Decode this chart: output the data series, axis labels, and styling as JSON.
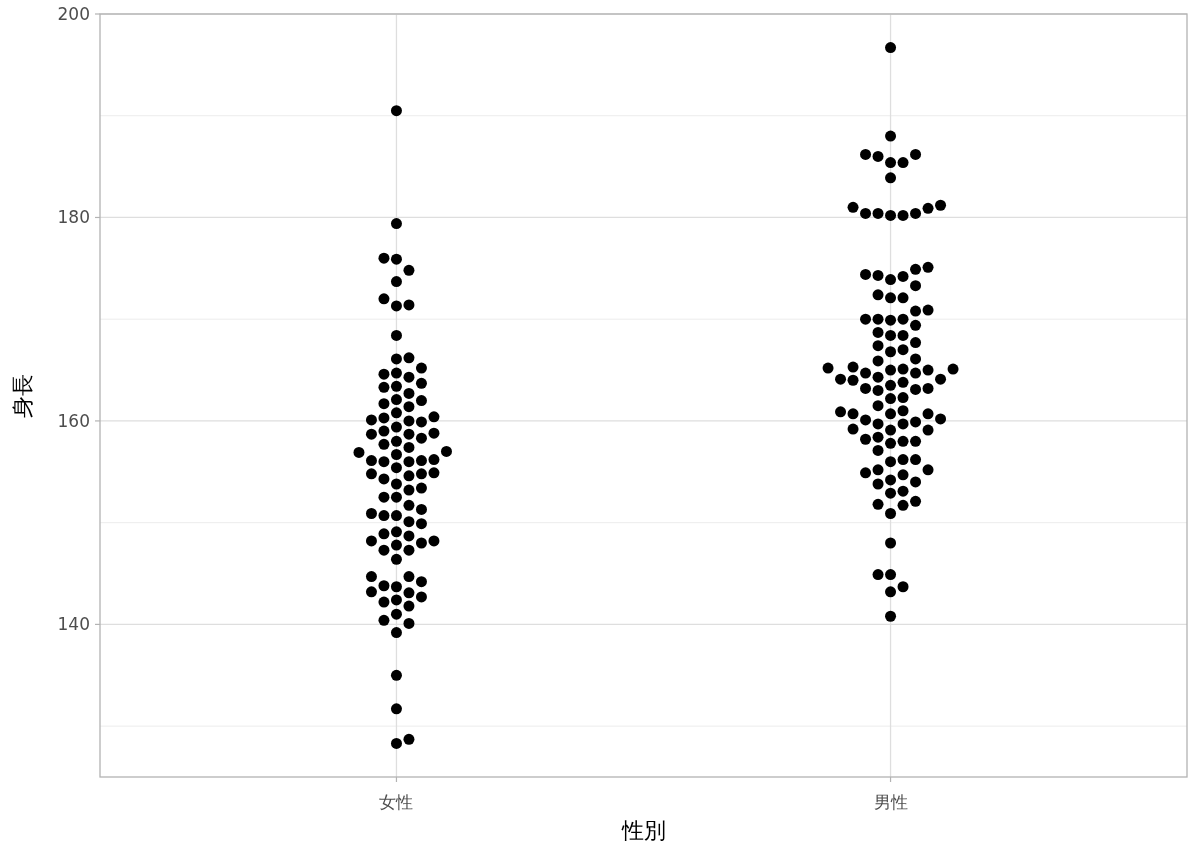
{
  "chart_data": {
    "type": "scatter",
    "xlabel": "性別",
    "ylabel": "身長",
    "marker": "circle",
    "grid": true,
    "categories": [
      "女性",
      "男性"
    ],
    "ylim": [
      125,
      200
    ],
    "yticks": [
      {
        "value": 130,
        "label": null
      },
      140,
      {
        "value": 150,
        "label": null
      },
      160,
      {
        "value": 170,
        "label": null
      },
      180,
      {
        "value": 190,
        "label": null
      },
      200
    ],
    "series": [
      {
        "color": "#000000",
        "x": [
          "女性",
          "女性",
          "女性",
          "女性",
          "女性",
          "女性",
          "女性",
          "女性",
          "女性",
          "女性",
          "女性",
          "女性",
          "女性",
          "女性",
          "女性",
          "女性",
          "女性",
          "女性",
          "女性",
          "女性",
          "女性",
          "女性",
          "女性",
          "女性",
          "女性",
          "女性",
          "女性",
          "女性",
          "女性",
          "女性",
          "女性",
          "女性",
          "女性",
          "女性",
          "女性",
          "女性",
          "女性",
          "女性",
          "女性",
          "女性",
          "女性",
          "女性",
          "女性",
          "女性",
          "女性",
          "女性",
          "女性",
          "女性",
          "女性",
          "女性",
          "女性",
          "女性",
          "女性",
          "女性",
          "女性",
          "女性",
          "女性",
          "女性",
          "女性",
          "女性",
          "女性",
          "女性",
          "女性",
          "女性",
          "女性",
          "女性",
          "女性",
          "女性",
          "女性",
          "女性",
          "女性",
          "女性",
          "女性",
          "女性",
          "女性",
          "女性",
          "女性",
          "女性",
          "女性",
          "女性",
          "女性",
          "女性",
          "女性",
          "女性",
          "女性",
          "女性",
          "女性",
          "女性",
          "女性",
          "女性",
          "女性",
          "女性",
          "女性",
          "女性"
        ],
        "values": [
          150.9,
          135.0,
          166.1,
          153.4,
          158.8,
          150.7,
          151.3,
          161.7,
          140.1,
          166.2,
          144.7,
          158.7,
          154.8,
          152.5,
          173.7,
          158.0,
          144.7,
          156.1,
          161.4,
          156.7,
          165.2,
          157.4,
          142.7,
          143.7,
          158.3,
          158.7,
          143.2,
          155.4,
          164.6,
          160.1,
          160.0,
          156.0,
          163.4,
          159.0,
          148.7,
          128.3,
          156.1,
          163.3,
          162.0,
          159.4,
          151.7,
          150.1,
          144.2,
          143.8,
          142.4,
          179.4,
          190.5,
          160.3,
          149.9,
          153.8,
          141.8,
          143.1,
          142.2,
          149.1,
          160.4,
          147.8,
          156.0,
          152.5,
          157.0,
          148.9,
          141.0,
          160.8,
          163.7,
          168.4,
          147.3,
          150.7,
          128.7,
          164.7,
          147.3,
          172.0,
          148.2,
          162.7,
          174.8,
          148.0,
          171.4,
          154.9,
          164.3,
          140.4,
          154.3,
          159.9,
          131.7,
          171.3,
          176.0,
          157.7,
          154.8,
          146.4,
          162.1,
          139.2,
          175.9,
          148.2,
          154.6,
          156.9,
          153.2,
          156.2
        ]
      },
      {
        "color": "#000000",
        "x": [
          "男性",
          "男性",
          "男性",
          "男性",
          "男性",
          "男性",
          "男性",
          "男性",
          "男性",
          "男性",
          "男性",
          "男性",
          "男性",
          "男性",
          "男性",
          "男性",
          "男性",
          "男性",
          "男性",
          "男性",
          "男性",
          "男性",
          "男性",
          "男性",
          "男性",
          "男性",
          "男性",
          "男性",
          "男性",
          "男性",
          "男性",
          "男性",
          "男性",
          "男性",
          "男性",
          "男性",
          "男性",
          "男性",
          "男性",
          "男性",
          "男性",
          "男性",
          "男性",
          "男性",
          "男性",
          "男性",
          "男性",
          "男性",
          "男性",
          "男性",
          "男性",
          "男性",
          "男性",
          "男性",
          "男性",
          "男性",
          "男性",
          "男性",
          "男性",
          "男性",
          "男性",
          "男性",
          "男性",
          "男性",
          "男性",
          "男性",
          "男性",
          "男性",
          "男性",
          "男性",
          "男性",
          "男性",
          "男性",
          "男性",
          "男性",
          "男性",
          "男性",
          "男性",
          "男性",
          "男性",
          "男性",
          "男性",
          "男性",
          "男性",
          "男性",
          "男性",
          "男性",
          "男性",
          "男性",
          "男性",
          "男性",
          "男性",
          "男性",
          "男性",
          "男性",
          "男性",
          "男性",
          "男性",
          "男性",
          "男性",
          "男性",
          "男性",
          "男性",
          "男性"
        ],
        "values": [
          150.9,
          160.7,
          174.4,
          158.0,
          162.3,
          143.2,
          165.1,
          164.3,
          164.0,
          186.2,
          173.9,
          167.7,
          173.3,
          164.1,
          165.0,
          158.4,
          144.9,
          143.7,
          151.7,
          140.8,
          154.0,
          152.1,
          170.0,
          167.0,
          160.9,
          165.9,
          161.5,
          172.1,
          180.4,
          163.2,
          174.3,
          159.7,
          165.3,
          174.9,
          152.9,
          160.2,
          156.2,
          156.2,
          180.9,
          169.4,
          155.2,
          164.1,
          158.0,
          181.2,
          163.1,
          180.4,
          175.1,
          163.5,
          174.2,
          185.4,
          181.0,
          166.1,
          180.4,
          148.0,
          196.7,
          170.0,
          165.2,
          186.2,
          159.1,
          161.0,
          153.8,
          154.2,
          163.2,
          166.8,
          157.1,
          154.9,
          160.7,
          185.4,
          156.0,
          170.0,
          186.0,
          168.4,
          170.8,
          155.2,
          159.9,
          168.7,
          159.2,
          180.2,
          168.4,
          164.7,
          172.4,
          164.7,
          159.1,
          167.4,
          163.0,
          157.8,
          170.9,
          165.0,
          162.2,
          154.7,
          153.1,
          163.8,
          188.0,
          160.7,
          160.1,
          180.2,
          144.9,
          165.1,
          151.8,
          158.2,
          169.9,
          172.1,
          159.7,
          183.9
        ]
      }
    ]
  }
}
